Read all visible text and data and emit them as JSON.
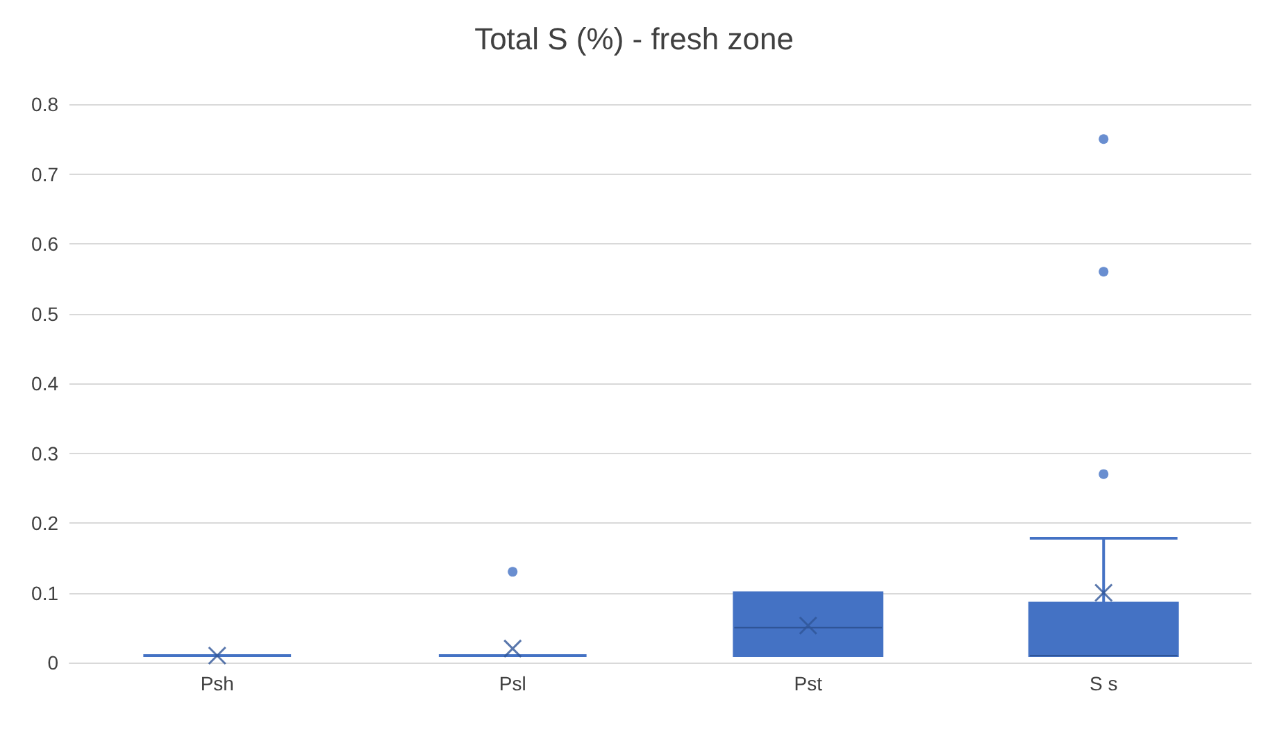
{
  "chart_data": {
    "type": "box",
    "title": "Total S (%) - fresh zone",
    "categories": [
      "Psh",
      "Psl",
      "Pst",
      "S s"
    ],
    "color": "#4472c4",
    "boxes": [
      {
        "low": 0.01,
        "q1": 0.01,
        "median": 0.01,
        "q3": 0.01,
        "high": 0.01,
        "mean": 0.01
      },
      {
        "low": 0.01,
        "q1": 0.01,
        "median": 0.01,
        "q3": 0.01,
        "high": 0.01,
        "mean": 0.02,
        "outliers": [
          0.13
        ]
      },
      {
        "low": 0.01,
        "q1": 0.01,
        "median": 0.05,
        "q3": 0.1,
        "high": 0.1,
        "mean": 0.053
      },
      {
        "low": 0.01,
        "q1": 0.01,
        "median": 0.01,
        "q3": 0.085,
        "high": 0.178,
        "mean": 0.1,
        "outliers": [
          0.27,
          0.56,
          0.75
        ]
      }
    ],
    "ylim": [
      0,
      0.8
    ],
    "yticks": [
      0,
      0.1,
      0.2,
      0.3,
      0.4,
      0.5,
      0.6,
      0.7,
      0.8
    ],
    "grid": "y"
  }
}
